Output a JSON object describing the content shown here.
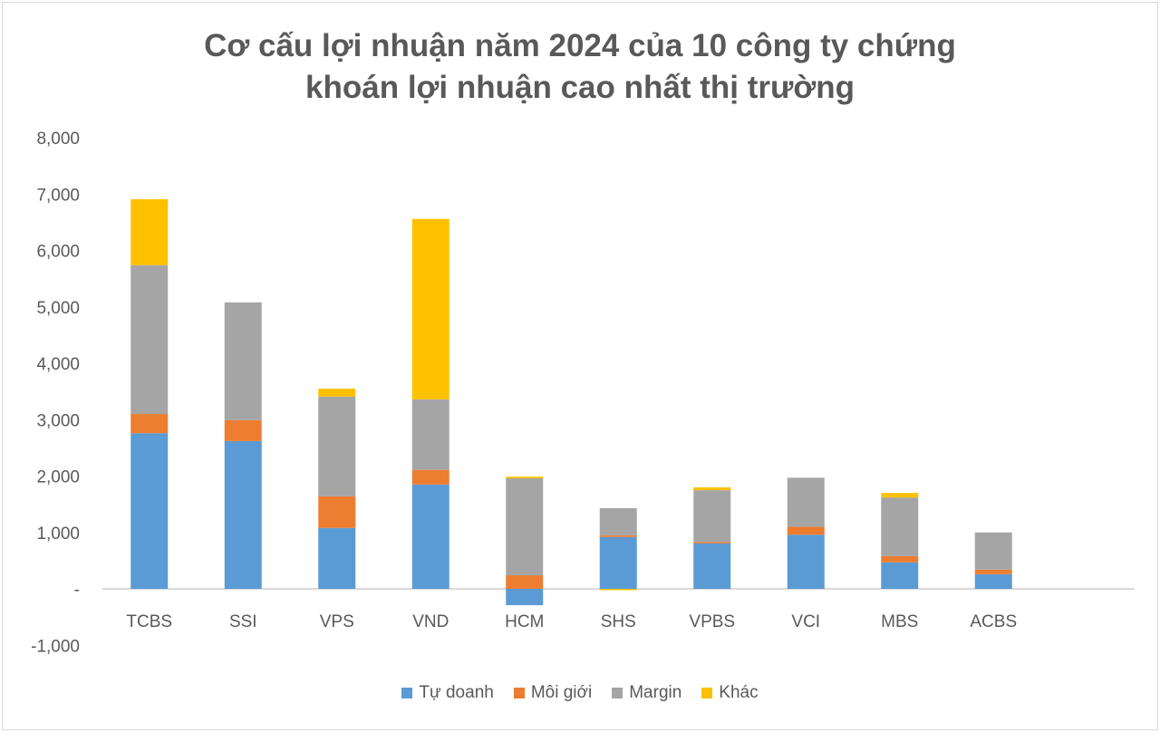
{
  "chart_data": {
    "type": "bar",
    "stacked": true,
    "title_lines": [
      "Cơ cấu lợi nhuận năm 2024 của 10 công ty chứng",
      "khoán lợi nhuận cao nhất thị trường"
    ],
    "xlabel": "",
    "ylabel": "",
    "ylim": [
      -1000,
      8000
    ],
    "y_ticks": [
      8000,
      7000,
      6000,
      5000,
      4000,
      3000,
      2000,
      1000,
      0,
      -1000
    ],
    "y_tick_labels": [
      "8,000",
      "7,000",
      "6,000",
      "5,000",
      "4,000",
      "3,000",
      "2,000",
      "1,000",
      "-",
      "-1,000"
    ],
    "grid": false,
    "legend_position": "bottom",
    "categories": [
      "TCBS",
      "SSI",
      "VPS",
      "VND",
      "HCM",
      "SHS",
      "VPBS",
      "VCI",
      "MBS",
      "ACBS"
    ],
    "series": [
      {
        "name": "Tự doanh",
        "color": "#5b9bd5",
        "values": [
          2760,
          2620,
          1080,
          1850,
          -290,
          920,
          820,
          960,
          470,
          260
        ]
      },
      {
        "name": "Môi giới",
        "color": "#ed7d31",
        "values": [
          340,
          370,
          560,
          260,
          240,
          30,
          10,
          140,
          110,
          80
        ]
      },
      {
        "name": "Margin",
        "color": "#a5a5a5",
        "values": [
          2640,
          2090,
          1770,
          1250,
          1720,
          480,
          920,
          870,
          1040,
          660
        ]
      },
      {
        "name": "Khác",
        "color": "#ffc000",
        "values": [
          1170,
          0,
          140,
          3200,
          30,
          -20,
          50,
          0,
          80,
          0
        ]
      }
    ]
  }
}
